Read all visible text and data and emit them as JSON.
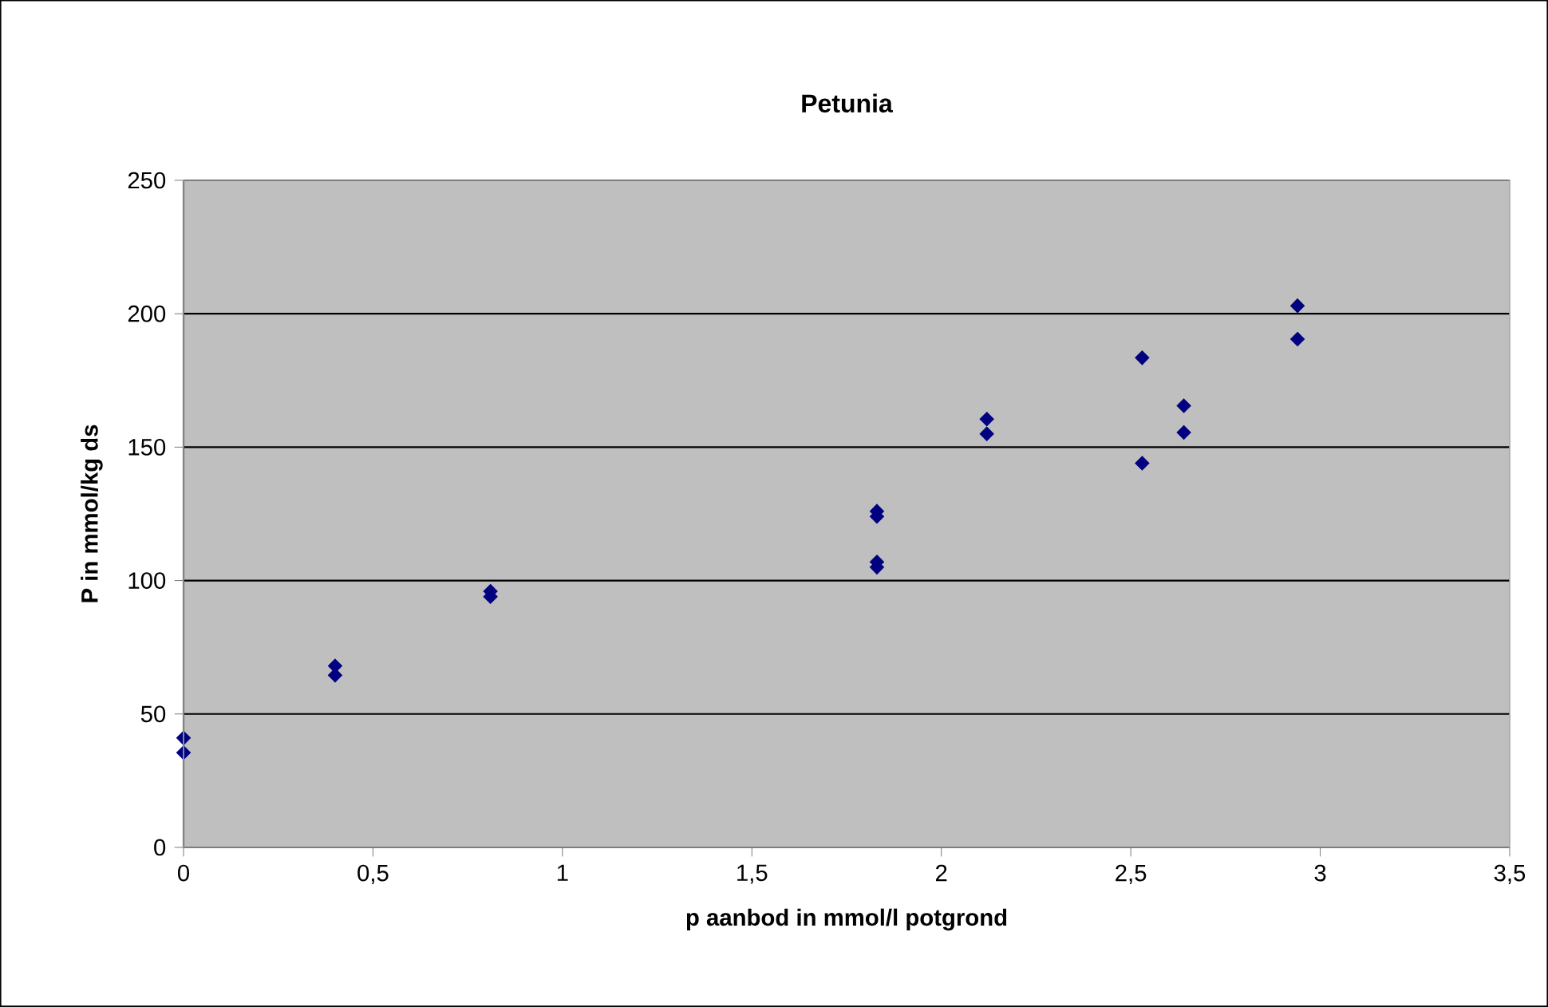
{
  "chart_data": {
    "type": "scatter",
    "title": "Petunia",
    "xlabel": "p aanbod in mmol/l potgrond",
    "ylabel": "P in mmol/kg ds",
    "series": [
      {
        "color": "#000080",
        "x": [
          0,
          0,
          0.4,
          0.4,
          0.81,
          0.81,
          1.83,
          1.83,
          1.83,
          1.83,
          2.12,
          2.12,
          2.53,
          2.53,
          2.64,
          2.64,
          2.94,
          2.94
        ],
        "values": [
          41,
          35.5,
          68,
          64.5,
          96,
          94,
          126,
          124,
          107,
          105,
          160.5,
          155,
          183.5,
          144,
          165.5,
          155.5,
          203,
          190.5
        ]
      }
    ],
    "xlim": [
      0,
      3.5
    ],
    "ylim": [
      0,
      250
    ],
    "xticks": [
      {
        "value": 0,
        "label": "0"
      },
      {
        "value": 0.5,
        "label": "0,5"
      },
      {
        "value": 1,
        "label": "1"
      },
      {
        "value": 1.5,
        "label": "1,5"
      },
      {
        "value": 2,
        "label": "2"
      },
      {
        "value": 2.5,
        "label": "2,5"
      },
      {
        "value": 3,
        "label": "3"
      },
      {
        "value": 3.5,
        "label": "3,5"
      }
    ],
    "yticks": [
      0,
      50,
      100,
      150,
      200,
      250
    ],
    "grid": "y",
    "marker": "diamond"
  }
}
